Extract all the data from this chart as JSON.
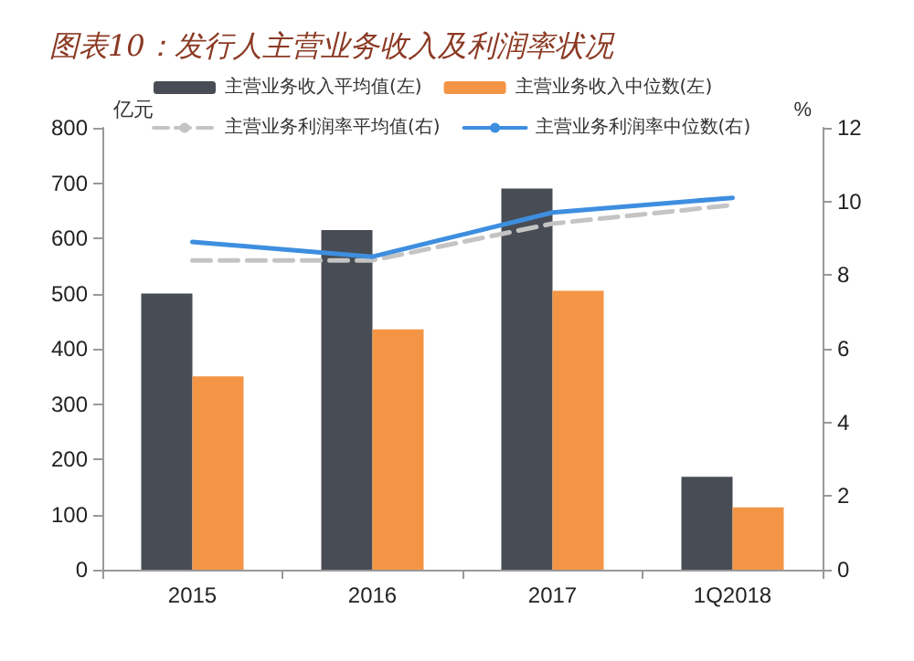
{
  "chart_data": {
    "type": "bar",
    "title": "图表10：发行人主营业务收入及利润率状况",
    "ylabel": "亿元",
    "y2label": "%",
    "categories": [
      "2015",
      "2016",
      "2017",
      "1Q2018"
    ],
    "series": [
      {
        "name": "主营业务收入平均值(左)",
        "color": "#484c54",
        "values": [
          500,
          615,
          690,
          168
        ]
      },
      {
        "name": "主营业务收入中位数(左)",
        "color": "#f39545",
        "values": [
          350,
          435,
          505,
          113
        ]
      },
      {
        "name": "主营业务利润率平均值(右)",
        "type": "line",
        "axis": "y2",
        "line_style": "dashed",
        "color": "#c4c4c4",
        "values": [
          8.4,
          8.4,
          9.4,
          9.9
        ]
      },
      {
        "name": "主营业务利润率中位数(右)",
        "type": "line",
        "axis": "y2",
        "line_style": "solid",
        "color": "#3e8ee0",
        "values": [
          8.9,
          8.5,
          9.7,
          10.1
        ]
      }
    ],
    "ylim": [
      0,
      800
    ],
    "yticks": [
      0,
      100,
      200,
      300,
      400,
      500,
      600,
      700,
      800
    ],
    "y2lim": [
      0,
      12
    ],
    "y2ticks": [
      0,
      2,
      4,
      6,
      8,
      10,
      12
    ],
    "grid": false,
    "legend": "top",
    "marker": "none"
  }
}
